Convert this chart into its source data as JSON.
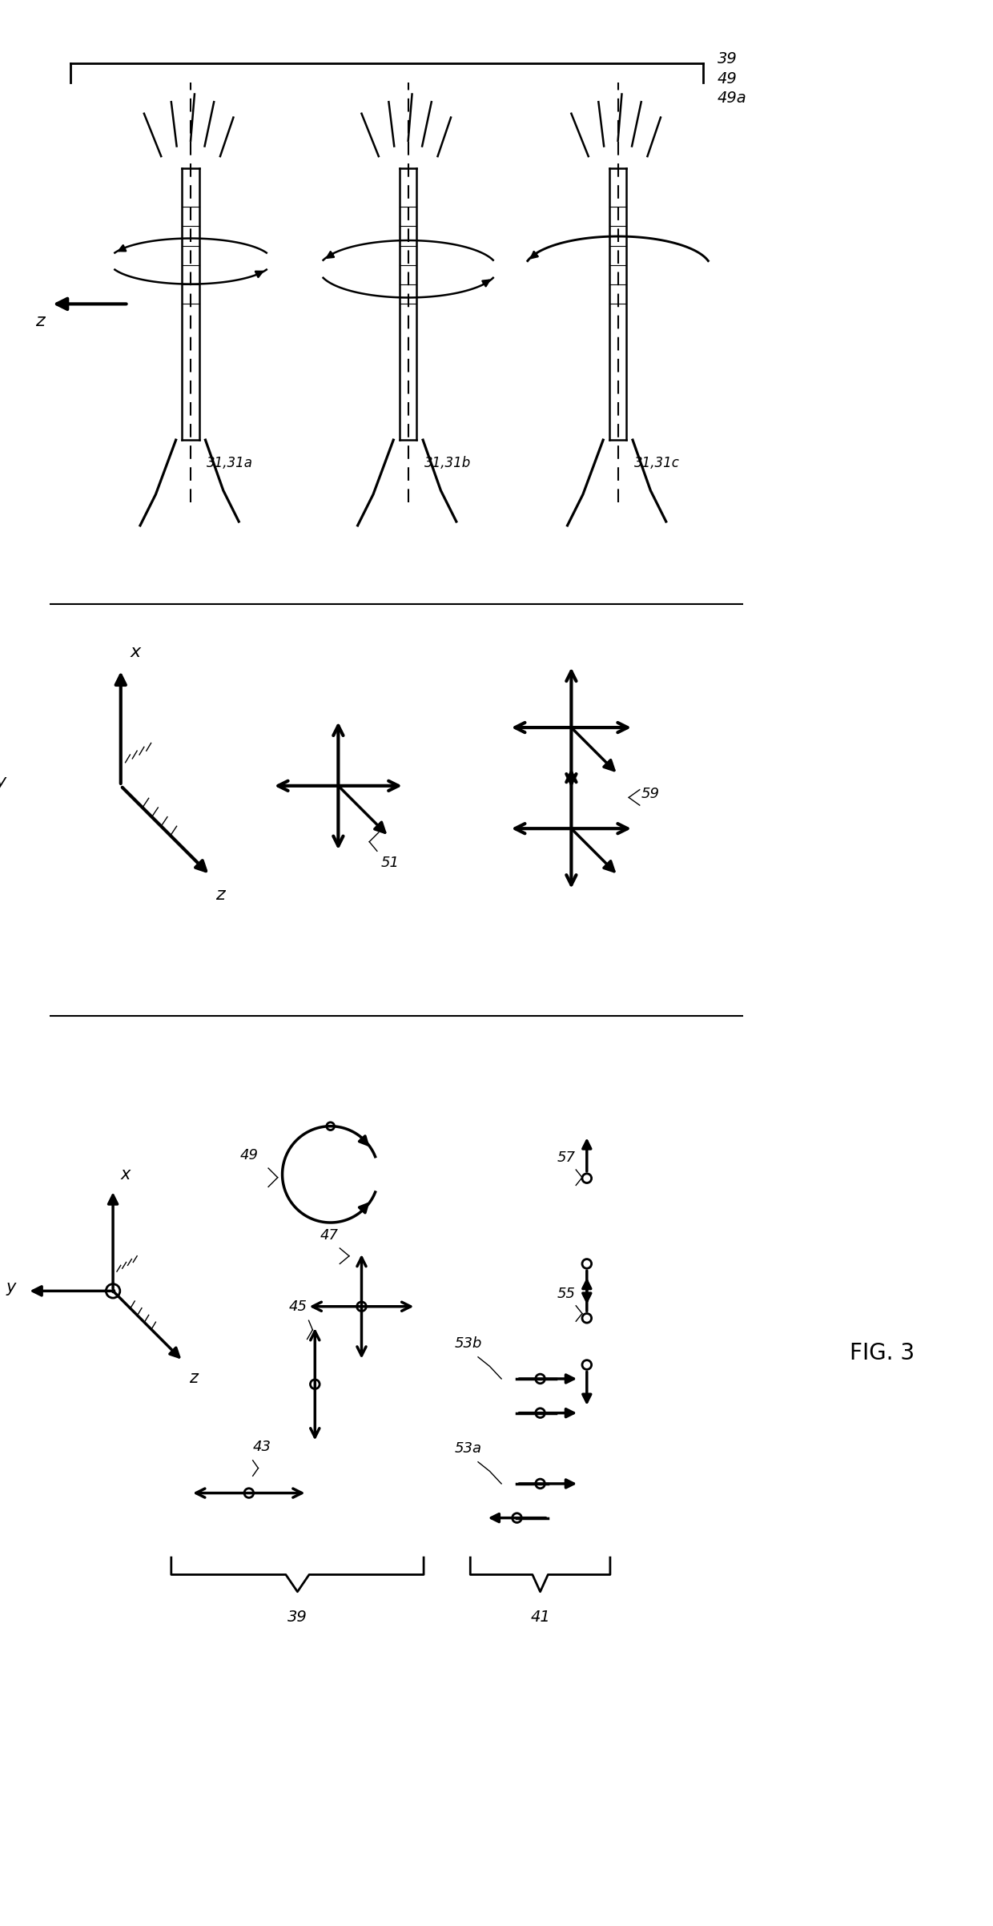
{
  "title": "FIG. 3",
  "background": "#ffffff",
  "line_color": "#000000",
  "figsize": [
    12.4,
    24.04
  ],
  "dpi": 100,
  "xlim": [
    0,
    1240
  ],
  "ylim": [
    0,
    2404
  ]
}
